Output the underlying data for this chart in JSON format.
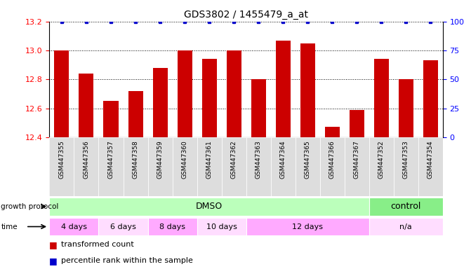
{
  "title": "GDS3802 / 1455479_a_at",
  "samples": [
    "GSM447355",
    "GSM447356",
    "GSM447357",
    "GSM447358",
    "GSM447359",
    "GSM447360",
    "GSM447361",
    "GSM447362",
    "GSM447363",
    "GSM447364",
    "GSM447365",
    "GSM447366",
    "GSM447367",
    "GSM447352",
    "GSM447353",
    "GSM447354"
  ],
  "transformed_counts": [
    13.0,
    12.84,
    12.65,
    12.72,
    12.88,
    13.0,
    12.94,
    13.0,
    12.8,
    13.07,
    13.05,
    12.47,
    12.59,
    12.94,
    12.8,
    12.93
  ],
  "percentile_ranks": [
    100,
    100,
    100,
    100,
    100,
    100,
    100,
    100,
    100,
    100,
    100,
    100,
    100,
    100,
    100,
    100
  ],
  "ylim_left": [
    12.4,
    13.2
  ],
  "ylim_right": [
    0,
    100
  ],
  "yticks_left": [
    12.4,
    12.6,
    12.8,
    13.0,
    13.2
  ],
  "yticks_right": [
    0,
    25,
    50,
    75,
    100
  ],
  "bar_color": "#cc0000",
  "dot_color": "#0000cc",
  "dmso_color": "#bbffbb",
  "control_color": "#88ee88",
  "time_color1": "#ffaaff",
  "time_color2": "#ffddff",
  "sample_bg_color": "#dddddd",
  "legend_red": "transformed count",
  "legend_blue": "percentile rank within the sample",
  "time_groups": [
    [
      0,
      2,
      "4 days"
    ],
    [
      2,
      4,
      "6 days"
    ],
    [
      4,
      6,
      "8 days"
    ],
    [
      6,
      8,
      "10 days"
    ],
    [
      8,
      13,
      "12 days"
    ],
    [
      13,
      16,
      "n/a"
    ]
  ],
  "dmso_range": [
    0,
    13
  ],
  "control_range": [
    13,
    16
  ]
}
